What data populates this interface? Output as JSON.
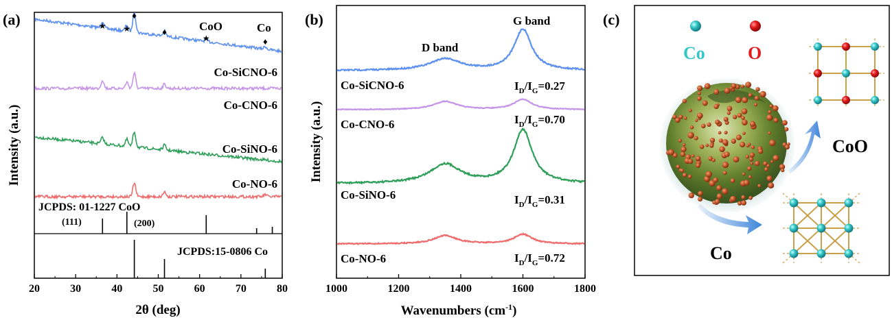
{
  "panel_a": {
    "letter": "(a)",
    "xlabel": "2θ (deg)",
    "ylabel": "Intensity (a.u.)",
    "x_ticks": [
      "20",
      "30",
      "40",
      "50",
      "60",
      "70",
      "80"
    ],
    "series_labels": [
      "Co-SiCNO-6",
      "Co-CNO-6",
      "Co-SiNO-6",
      "Co-NO-6"
    ],
    "legend_coo": "CoO",
    "legend_co": "Co",
    "ref_coo_label": "JCPDS: 01-1227 CoO",
    "ref_co_label": "JCPDS:15-0806 Co",
    "hkl_111": "(111)",
    "hkl_200": "(200)",
    "star_glyph": "★",
    "diamond_glyph": "♦"
  },
  "panel_b": {
    "letter": "(b)",
    "xlabel": "Wavenumbers (cm",
    "xlabel_sup": "-1",
    "xlabel_end": ")",
    "ylabel": "Intensity (a.u.)",
    "x_ticks": [
      "1000",
      "1200",
      "1400",
      "1600",
      "1800"
    ],
    "d_band": "D band",
    "g_band": "G band",
    "ratio_prefix": "I",
    "ratio_sub_d": "D",
    "ratio_slash": "/I",
    "ratio_sub_g": "G",
    "series_labels": [
      "Co-SiCNO-6",
      "Co-CNO-6",
      "Co-SiNO-6",
      "Co-NO-6"
    ],
    "ratios": [
      "=0.27",
      "=0.70",
      "=0.31",
      "=0.72"
    ]
  },
  "panel_c": {
    "letter": "(c)",
    "legend_co": "Co",
    "legend_o": "O",
    "label_coo": "CoO",
    "label_co": "Co"
  },
  "colors": {
    "blue": "#5b8ff0",
    "purple": "#c593e8",
    "green": "#2e9e58",
    "red": "#ef6b6b",
    "cyan": "#35c6c6",
    "oxygen": "#e21b1b",
    "arrow": "#3f86d9",
    "lattice": "#c9a14a"
  },
  "chart_data": [
    {
      "type": "line",
      "title": "",
      "xlabel": "2θ (deg)",
      "ylabel": "Intensity (a.u.)",
      "xlim": [
        20,
        80
      ],
      "series": [
        {
          "name": "Co-SiCNO-6",
          "peaks": [
            36.5,
            42.4,
            44.2,
            51.5,
            61.6,
            75.9
          ]
        },
        {
          "name": "Co-CNO-6",
          "peaks": [
            36.5,
            42.4,
            44.2,
            51.5
          ]
        },
        {
          "name": "Co-SiNO-6",
          "peaks": [
            36.5,
            42.4,
            44.2,
            51.5
          ]
        },
        {
          "name": "Co-NO-6",
          "peaks": [
            44.2,
            51.5,
            75.9
          ]
        }
      ],
      "reference_sticks": {
        "JCPDS: 01-1227 CoO": [
          36.5,
          42.4,
          61.6,
          73.8,
          77.6
        ],
        "JCPDS:15-0806 Co": [
          44.2,
          51.5,
          75.9
        ]
      },
      "markers": {
        "CoO": "star",
        "Co": "diamond"
      }
    },
    {
      "type": "line",
      "title": "",
      "xlabel": "Wavenumbers (cm-1)",
      "ylabel": "Intensity (a.u.)",
      "xlim": [
        1000,
        1800
      ],
      "bands": {
        "D band": 1350,
        "G band": 1600
      },
      "series": [
        {
          "name": "Co-SiCNO-6",
          "ID_IG": 0.27
        },
        {
          "name": "Co-CNO-6",
          "ID_IG": 0.7
        },
        {
          "name": "Co-SiNO-6",
          "ID_IG": 0.31
        },
        {
          "name": "Co-NO-6",
          "ID_IG": 0.72
        }
      ]
    }
  ]
}
